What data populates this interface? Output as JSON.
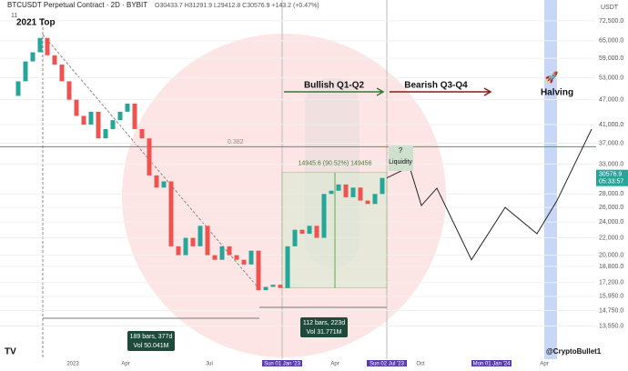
{
  "header": {
    "symbol": "BTCUSDT Perpetual Contract · 2D · BYBIT",
    "ohlc": "O30433.7 H31291.9 L29412.8 C30576.9 +143.2 (+0.47%)",
    "indicator": "11",
    "currency": "USDT"
  },
  "chart_data": {
    "type": "candlestick",
    "log_scale": true,
    "ylim": [
      10850,
      81300
    ],
    "yticks": [
      {
        "value": 72500,
        "label": "72,500.0"
      },
      {
        "value": 65000,
        "label": "65,000.0"
      },
      {
        "value": 59000,
        "label": "59,000.0"
      },
      {
        "value": 53000,
        "label": "53,000.0"
      },
      {
        "value": 47000,
        "label": "47,000.0"
      },
      {
        "value": 41000,
        "label": "41,000.0"
      },
      {
        "value": 37000,
        "label": "37,000.0"
      },
      {
        "value": 33000,
        "label": "33,000.0"
      },
      {
        "value": 28000,
        "label": "28,000.0"
      },
      {
        "value": 26000,
        "label": "26,000.0"
      },
      {
        "value": 24000,
        "label": "24,000.0"
      },
      {
        "value": 22000,
        "label": "22,000.0"
      },
      {
        "value": 20000,
        "label": "20,000.0"
      },
      {
        "value": 18800,
        "label": "18,800.0"
      },
      {
        "value": 17200,
        "label": "17,200.0"
      },
      {
        "value": 15950,
        "label": "15,950.0"
      },
      {
        "value": 14750,
        "label": "14,750.0"
      },
      {
        "value": 13550,
        "label": "13,550.0"
      }
    ],
    "close": [
      48000,
      52000,
      58000,
      61000,
      66000,
      60000,
      57000,
      52000,
      47000,
      43000,
      41000,
      44000,
      38000,
      40000,
      42000,
      44000,
      46000,
      40000,
      38000,
      31000,
      29000,
      30000,
      21000,
      20000,
      22000,
      21000,
      23500,
      20000,
      19500,
      21000,
      20000,
      19500,
      19000,
      20500,
      16500,
      16800,
      17000,
      16700,
      21000,
      23000,
      22500,
      23500,
      22000,
      28000,
      28500,
      29500,
      27500,
      29000,
      27000,
      26500,
      28000,
      30576.9
    ],
    "up_color": "#26a69a",
    "down_color": "#ef5350",
    "projection": {
      "values": [
        30576.9,
        32500,
        26270,
        28900,
        19500,
        26000,
        22500,
        27000,
        40000
      ],
      "color": "#222222"
    },
    "last_price": {
      "value": 30576.9,
      "label": "30576.9",
      "countdown": "05:33:57"
    },
    "fib_level": {
      "value": 36300,
      "label": "0.382"
    },
    "range_box": {
      "top": 31500,
      "bottom": 16700,
      "label": "14945.6 (90.52%) 149456"
    },
    "x_labels": [
      "2023",
      "Apr",
      "Jul",
      "Sun 01 Jan '23",
      "Apr",
      "Sun 02 Jul '23",
      "Oct",
      "Mon 01 Jan '24",
      "Apr"
    ]
  },
  "annotations": {
    "top": "2021 Top",
    "bullish": "Bullish Q1-Q2",
    "bearish": "Bearish Q3-Q4",
    "halving": "Halving",
    "question": "?",
    "liquidity": "Liquidity",
    "measure1_bars": "189 bars, 377d",
    "measure1_vol": "Vol 50.041M",
    "measure2_bars": "112 bars, 223d",
    "measure2_vol": "Vol 31.771M",
    "author": "@CryptoBullet1"
  }
}
